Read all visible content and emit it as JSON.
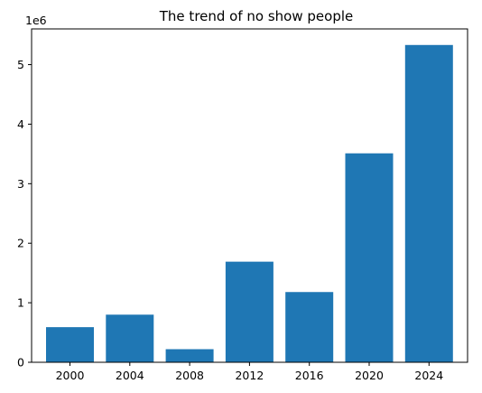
{
  "chart_data": {
    "type": "bar",
    "title": "The trend of no show people",
    "xlabel": "",
    "ylabel": "",
    "categories": [
      "2000",
      "2004",
      "2008",
      "2012",
      "2016",
      "2020",
      "2024"
    ],
    "values": [
      590000,
      800000,
      220000,
      1690000,
      1180000,
      3510000,
      5330000
    ],
    "ylim": [
      0,
      5600000
    ],
    "yticks": [
      0,
      1000000,
      2000000,
      3000000,
      4000000,
      5000000
    ],
    "ytick_labels": [
      "0",
      "1",
      "2",
      "3",
      "4",
      "5"
    ],
    "y_offset_label": "1e6",
    "bar_color": "#1f77b4",
    "grid": false,
    "legend": "none"
  }
}
